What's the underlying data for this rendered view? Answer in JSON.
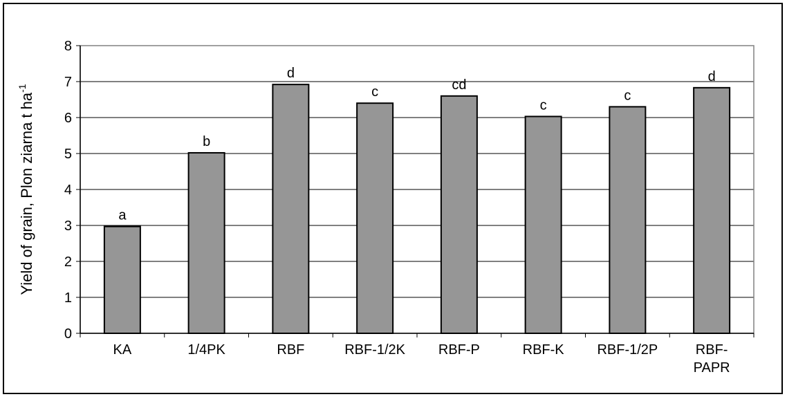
{
  "chart_data": {
    "type": "bar",
    "ylabel": "Yield of grain, Plon ziarna t ha",
    "ylabel_sup": "-1",
    "ylim": [
      0,
      8
    ],
    "yticks": [
      "0",
      "1",
      "2",
      "3",
      "4",
      "5",
      "6",
      "7",
      "8"
    ],
    "grid": true,
    "categories": [
      "KA",
      "1/4PK",
      "RBF",
      "RBF-1/2K",
      "RBF-P",
      "RBF-K",
      "RBF-1/2P",
      "RBF-\nPAPR"
    ],
    "values": [
      2.97,
      5.02,
      6.92,
      6.4,
      6.6,
      6.03,
      6.3,
      6.83
    ],
    "significance_letters": [
      "a",
      "b",
      "d",
      "c",
      "cd",
      "c",
      "c",
      "d"
    ],
    "colors": {
      "bar_fill": "#969696",
      "bar_stroke": "#000000",
      "grid": "#000000",
      "plot_border": "#808080"
    }
  }
}
